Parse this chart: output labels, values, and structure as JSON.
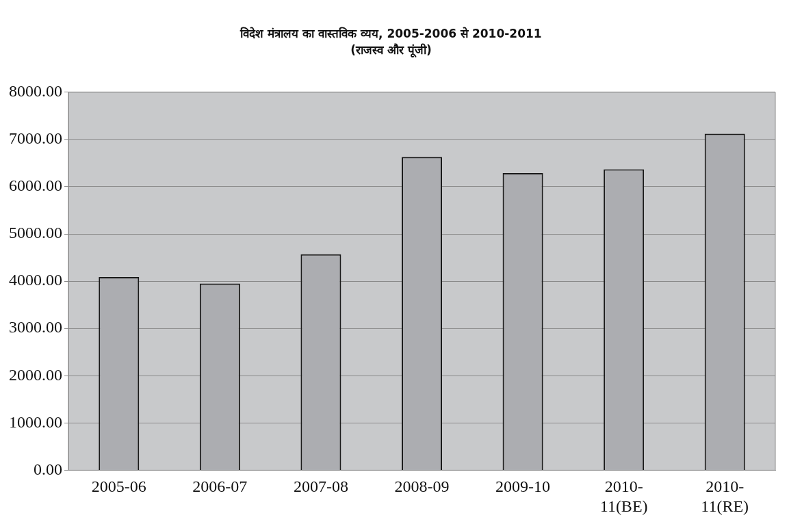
{
  "chart_data": {
    "type": "bar",
    "title": "विदेश मंत्रालय का वास्तविक व्यय, 2005-2006 से 2010-2011",
    "subtitle": "(राजस्व और पूंजी)",
    "categories": [
      "2005-06",
      "2006-07",
      "2007-08",
      "2008-09",
      "2009-10",
      "2010-11(BE)",
      "2010-11(RE)"
    ],
    "values": [
      4090,
      3950,
      4570,
      6630,
      6290,
      6370,
      7120
    ],
    "color": "#acadb1",
    "ylim": [
      0,
      8000
    ],
    "yticks": [
      {
        "value": 0,
        "label": "0.00"
      },
      {
        "value": 1000,
        "label": "1000.00"
      },
      {
        "value": 2000,
        "label": "2000.00"
      },
      {
        "value": 3000,
        "label": "3000.00"
      },
      {
        "value": 4000,
        "label": "4000.00"
      },
      {
        "value": 5000,
        "label": "5000.00"
      },
      {
        "value": 6000,
        "label": "6000.00"
      },
      {
        "value": 7000,
        "label": "7000.00"
      },
      {
        "value": 8000,
        "label": "8000.00"
      }
    ],
    "grid": "y",
    "legend": false
  }
}
